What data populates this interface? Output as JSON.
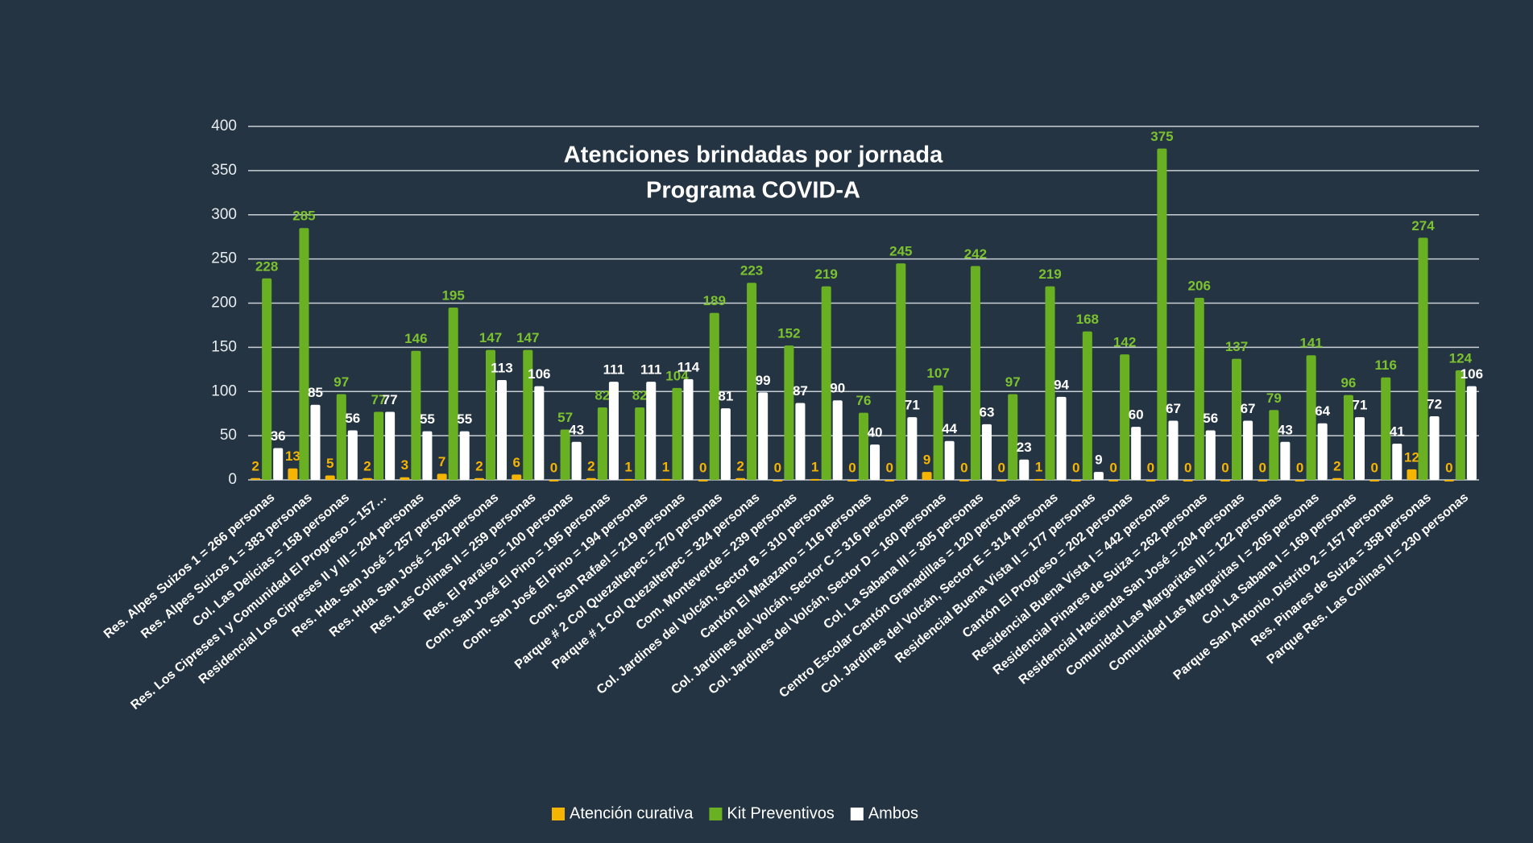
{
  "chart_data": {
    "type": "bar",
    "title": "Atenciones brindadas por jornada",
    "subtitle": "Programa COVID-A",
    "categories": [
      "Res. Alpes Suizos 1 = 266 personas",
      "Res. Alpes Suizos 1 = 383 personas",
      "Col. Las Delicias = 158 personas",
      "Res. Los Cipreses I y Comunidad El Progreso = 157…",
      "Residencial Los Cipreses II y III = 204 personas",
      "Res. Hda. San José = 257 personas",
      "Res. Hda. San José = 262 personas",
      "Res. Las Colinas II = 259 personas",
      "Res. El Paraíso = 100 personas",
      "Com. San José El Pino = 195 personas",
      "Com. San José El Pino = 194 personas",
      "Com. San Rafael = 219 personas",
      "Parque # 2 Col Quezaltepec = 270 personas",
      "Parque # 1 Col Quezaltepec = 324 personas",
      "Com. Monteverde = 239 personas",
      "Col. Jardines del Volcán, Sector B = 310 personas",
      "Cantón El Matazano = 116 personas",
      "Col. Jardines del Volcán, Sector C = 316 personas",
      "Col. Jardines del Volcán, Sector D = 160 personas",
      "Col. La Sabana III = 305 personas",
      "Centro Escolar Cantón Granadillas = 120 personas",
      "Col. Jardines del Volcán, Sector E = 314 personas",
      "Residencial Buena Vista II = 177 personas",
      "Cantón El Progreso = 202 personas",
      "Residencial Buena Vista I = 442 personas",
      "Residencial Pinares de Suiza = 262 personas",
      "Residencial Hacienda San José = 204 personas",
      "Comunidad Las Margaritas III = 122 personas",
      "Comunidad Las Margaritas I = 205 personas",
      "Col. La Sabana I = 169 personas",
      "Parque San Antonio. Distrito 2 = 157 personas",
      "Res. Pinares de Suiza = 358 personas",
      "Parque Res. Las Colinas II = 230 personas"
    ],
    "series": [
      {
        "name": "Atención curativa",
        "color": "#f5b400",
        "values": [
          2,
          13,
          5,
          2,
          3,
          7,
          2,
          6,
          0,
          2,
          1,
          1,
          0,
          2,
          0,
          1,
          0,
          0,
          9,
          0,
          0,
          1,
          0,
          0,
          0,
          0,
          0,
          0,
          0,
          2,
          0,
          12,
          0
        ]
      },
      {
        "name": "Kit Preventivos",
        "color": "#6ab023",
        "values": [
          228,
          285,
          97,
          77,
          146,
          195,
          147,
          147,
          57,
          82,
          82,
          104,
          189,
          223,
          152,
          219,
          76,
          245,
          107,
          242,
          97,
          219,
          168,
          142,
          375,
          206,
          137,
          79,
          141,
          96,
          116,
          274,
          124
        ]
      },
      {
        "name": "Ambos",
        "color": "#ffffff",
        "values": [
          36,
          85,
          56,
          77,
          55,
          55,
          113,
          106,
          43,
          111,
          111,
          114,
          81,
          99,
          87,
          90,
          40,
          71,
          44,
          63,
          23,
          94,
          9,
          60,
          67,
          56,
          67,
          43,
          64,
          71,
          41,
          72,
          106
        ]
      }
    ],
    "ylim": [
      0,
      400
    ],
    "yticks": [
      0,
      50,
      100,
      150,
      200,
      250,
      300,
      350,
      400
    ],
    "grid": true,
    "legend": "bottom"
  }
}
